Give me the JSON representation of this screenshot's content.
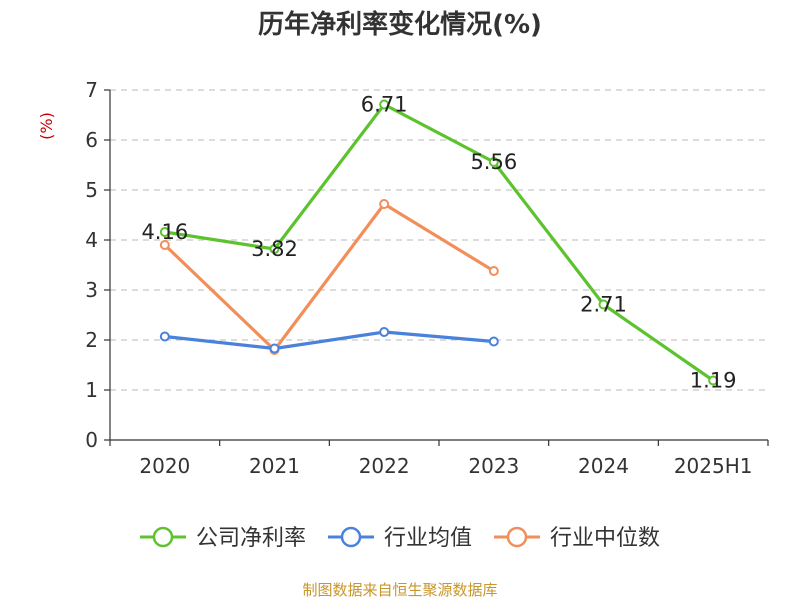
{
  "chart_data": {
    "type": "line",
    "title": "历年净利率变化情况(%)",
    "ylabel": "(%)",
    "categories": [
      "2020",
      "2021",
      "2022",
      "2023",
      "2024",
      "2025H1"
    ],
    "yticks": [
      "0",
      "1",
      "2",
      "3",
      "4",
      "5",
      "6",
      "7"
    ],
    "ylim": [
      0,
      7
    ],
    "grid": "horizontal-dashed",
    "legend_position": "bottom",
    "series": [
      {
        "name": "公司净利率",
        "color": "#5cc32f",
        "values": [
          4.16,
          3.82,
          6.71,
          5.56,
          2.71,
          1.19
        ],
        "labels": [
          "4.16",
          "3.82",
          "6.71",
          "5.56",
          "2.71",
          "1.19"
        ]
      },
      {
        "name": "行业均值",
        "color": "#4a82db",
        "values": [
          2.07,
          1.83,
          2.16,
          1.97,
          null,
          null
        ]
      },
      {
        "name": "行业中位数",
        "color": "#f28e5a",
        "values": [
          3.9,
          1.8,
          4.72,
          3.38,
          null,
          null
        ]
      }
    ]
  },
  "source": "制图数据来自恒生聚源数据库"
}
